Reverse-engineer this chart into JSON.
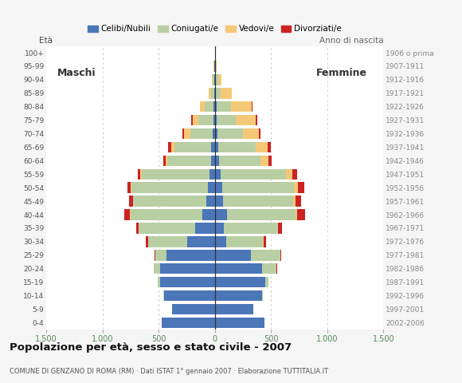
{
  "age_groups": [
    "0-4",
    "5-9",
    "10-14",
    "15-19",
    "20-24",
    "25-29",
    "30-34",
    "35-39",
    "40-44",
    "45-49",
    "50-54",
    "55-59",
    "60-64",
    "65-69",
    "70-74",
    "75-79",
    "80-84",
    "85-89",
    "90-94",
    "95-99",
    "100+"
  ],
  "birth_years": [
    "2002-2006",
    "1997-2001",
    "1992-1996",
    "1987-1991",
    "1982-1986",
    "1977-1981",
    "1972-1976",
    "1967-1971",
    "1962-1966",
    "1957-1961",
    "1952-1956",
    "1947-1951",
    "1942-1946",
    "1937-1941",
    "1932-1936",
    "1927-1931",
    "1922-1926",
    "1917-1921",
    "1912-1916",
    "1907-1911",
    "1906 o prima"
  ],
  "male_celibe": [
    470,
    380,
    450,
    490,
    490,
    430,
    245,
    175,
    110,
    75,
    60,
    50,
    35,
    30,
    20,
    15,
    10,
    5,
    5,
    2,
    0
  ],
  "male_coniugato": [
    2,
    2,
    5,
    20,
    50,
    100,
    350,
    500,
    640,
    650,
    680,
    600,
    380,
    330,
    200,
    130,
    80,
    30,
    15,
    5,
    0
  ],
  "male_vedovo": [
    0,
    0,
    0,
    0,
    0,
    0,
    1,
    2,
    3,
    5,
    10,
    15,
    20,
    30,
    55,
    50,
    40,
    20,
    5,
    2,
    0
  ],
  "male_divorziato": [
    0,
    0,
    0,
    0,
    2,
    5,
    15,
    20,
    50,
    30,
    30,
    20,
    25,
    25,
    10,
    15,
    5,
    0,
    0,
    0,
    0
  ],
  "female_nubile": [
    440,
    340,
    420,
    450,
    420,
    320,
    100,
    80,
    110,
    75,
    65,
    55,
    35,
    30,
    20,
    15,
    15,
    10,
    10,
    5,
    0
  ],
  "female_coniugata": [
    2,
    3,
    10,
    30,
    130,
    260,
    330,
    480,
    610,
    620,
    640,
    580,
    370,
    330,
    230,
    170,
    130,
    45,
    20,
    5,
    0
  ],
  "female_vedova": [
    0,
    0,
    0,
    0,
    0,
    0,
    2,
    5,
    15,
    20,
    35,
    55,
    70,
    110,
    140,
    175,
    185,
    95,
    30,
    8,
    2
  ],
  "female_divorziata": [
    0,
    0,
    0,
    0,
    3,
    10,
    25,
    30,
    70,
    50,
    55,
    40,
    30,
    30,
    15,
    15,
    5,
    0,
    0,
    0,
    0
  ],
  "color_celibe": "#4b76b8",
  "color_coniugato": "#b9cfa3",
  "color_vedovo": "#f5c878",
  "color_divorziato": "#cc2222",
  "title": "Popolazione per età, sesso e stato civile - 2007",
  "subtitle": "COMUNE DI GENZANO DI ROMA (RM) · Dati ISTAT 1° gennaio 2007 · Elaborazione TUTTITALIA.IT",
  "xlim": 1500,
  "bg_color": "#f5f5f5",
  "plot_bg": "#ffffff"
}
